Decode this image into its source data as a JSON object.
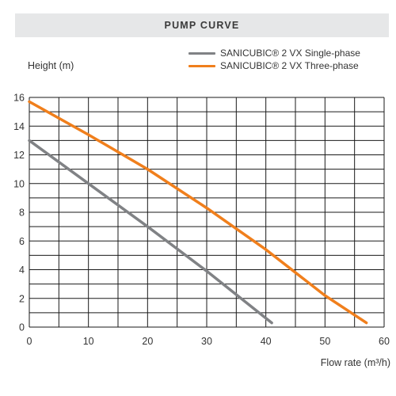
{
  "chart_data": {
    "type": "line",
    "title": "PUMP CURVE",
    "ylabel": "Height (m)",
    "xlabel": "Flow rate (m³/h)",
    "xlim": [
      0,
      60
    ],
    "ylim": [
      0,
      16
    ],
    "x_ticks": [
      0,
      10,
      20,
      30,
      40,
      50,
      60
    ],
    "y_ticks": [
      0,
      2,
      4,
      6,
      8,
      10,
      12,
      14,
      16
    ],
    "grid": true,
    "legend_position": "top-right",
    "series": [
      {
        "name": "SANICUBIC® 2 VX Single-phase",
        "color": "#808285",
        "x": [
          0,
          10,
          20,
          30,
          41
        ],
        "y": [
          13.0,
          10.0,
          7.0,
          3.9,
          0.3
        ]
      },
      {
        "name": "SANICUBIC® 2 VX Three-phase",
        "color": "#f07f1c",
        "x": [
          0,
          10,
          20,
          30,
          40,
          50,
          57
        ],
        "y": [
          15.7,
          13.4,
          11.0,
          8.3,
          5.4,
          2.2,
          0.3
        ]
      }
    ]
  }
}
